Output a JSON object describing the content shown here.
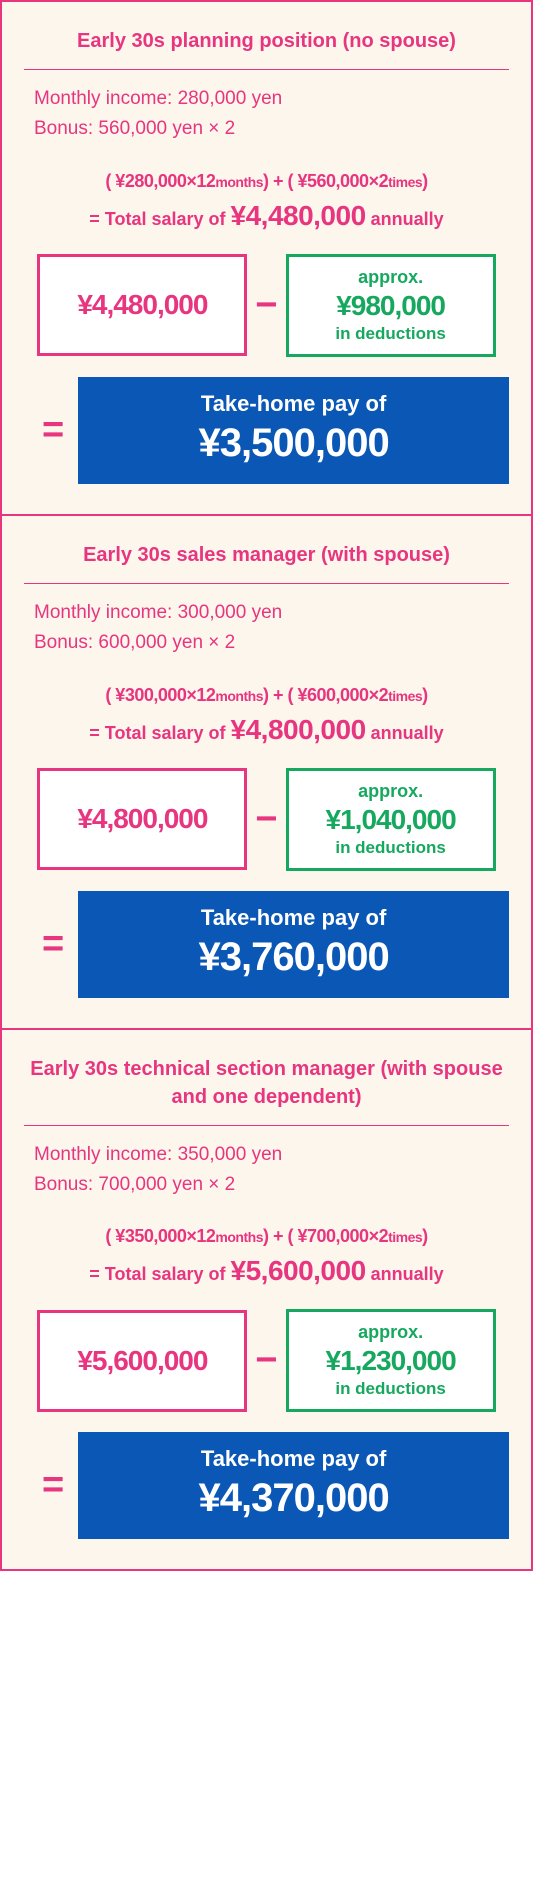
{
  "colors": {
    "pink": "#e73580",
    "green": "#17a85f",
    "blue": "#0a57b5",
    "cream": "#fdf6ec",
    "white": "#ffffff"
  },
  "cards": [
    {
      "title": "Early 30s  planning position (no spouse)",
      "monthly": "Monthly income: 280,000 yen",
      "bonus": "Bonus: 560,000 yen × 2",
      "formula_a": "( ¥280,000×12",
      "formula_a_unit": "months",
      "formula_b": ") + ( ¥560,000×2",
      "formula_b_unit": "times",
      "formula_end": ")",
      "total_prefix": "= Total salary of ",
      "total_amount": "¥4,480,000",
      "total_suffix": " annually",
      "salary_box": "¥4,480,000",
      "deduct_approx": "approx.",
      "deduct_amount": "¥980,000",
      "deduct_label": "in deductions",
      "takehome_label": "Take-home pay of",
      "takehome_amount": "¥3,500,000"
    },
    {
      "title": "Early 30s  sales manager (with spouse)",
      "monthly": "Monthly income: 300,000 yen",
      "bonus": "Bonus: 600,000 yen × 2",
      "formula_a": "( ¥300,000×12",
      "formula_a_unit": "months",
      "formula_b": ") + ( ¥600,000×2",
      "formula_b_unit": "times",
      "formula_end": ")",
      "total_prefix": "= Total salary of ",
      "total_amount": "¥4,800,000",
      "total_suffix": " annually",
      "salary_box": "¥4,800,000",
      "deduct_approx": "approx.",
      "deduct_amount": "¥1,040,000",
      "deduct_label": "in deductions",
      "takehome_label": "Take-home pay of",
      "takehome_amount": "¥3,760,000"
    },
    {
      "title": "Early 30s  technical section manager (with spouse and one dependent)",
      "monthly": "Monthly income: 350,000 yen",
      "bonus": "Bonus: 700,000 yen × 2",
      "formula_a": "( ¥350,000×12",
      "formula_a_unit": "months",
      "formula_b": ") + ( ¥700,000×2",
      "formula_b_unit": "times",
      "formula_end": ")",
      "total_prefix": "= Total salary of ",
      "total_amount": "¥5,600,000",
      "total_suffix": " annually",
      "salary_box": "¥5,600,000",
      "deduct_approx": "approx.",
      "deduct_amount": "¥1,230,000",
      "deduct_label": "in deductions",
      "takehome_label": "Take-home pay of",
      "takehome_amount": "¥4,370,000"
    }
  ]
}
